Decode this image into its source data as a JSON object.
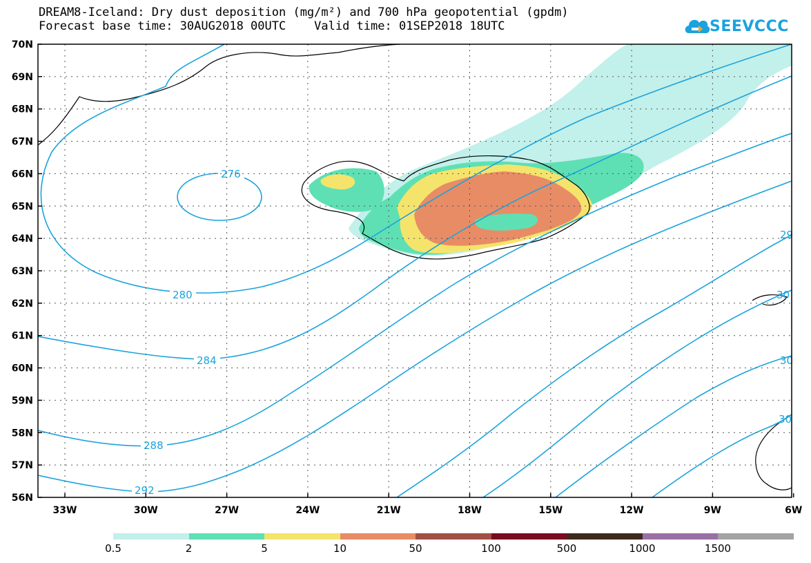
{
  "title": {
    "line1": "DREAM8-Iceland: Dry dust deposition (mg/m²) and 700 hPa geopotential (gpdm)",
    "line2": "Forecast base time: 30AUG2018 00UTC    Valid time: 01SEP2018 18UTC"
  },
  "logo": {
    "text": "SEEVCCC",
    "color": "#1aa3dd"
  },
  "map": {
    "lat_labels": [
      "70N",
      "69N",
      "68N",
      "67N",
      "66N",
      "65N",
      "64N",
      "63N",
      "62N",
      "61N",
      "60N",
      "59N",
      "58N",
      "57N",
      "56N"
    ],
    "lon_labels": [
      "33W",
      "30W",
      "27W",
      "24W",
      "21W",
      "18W",
      "15W",
      "12W",
      "9W",
      "6W"
    ],
    "contour_color": "#1aa3dd",
    "contour_labels": [
      "276",
      "280",
      "284",
      "288",
      "292",
      "29",
      "30",
      "30",
      "30"
    ]
  },
  "colorbar": {
    "colors": [
      "#c2f0ea",
      "#5ee0b4",
      "#f5e46b",
      "#e88c66",
      "#a24f44",
      "#7a0a22",
      "#3d2a1c",
      "#9a6fa4",
      "#a3a3a3"
    ],
    "labels": [
      "0.5",
      "2",
      "5",
      "10",
      "50",
      "100",
      "500",
      "1000",
      "1500"
    ]
  }
}
